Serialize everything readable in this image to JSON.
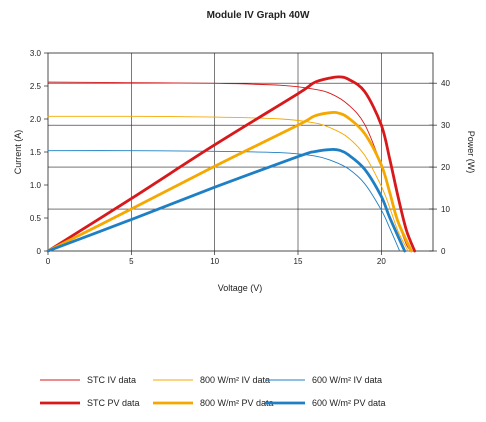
{
  "chart_data": {
    "type": "line",
    "title": "Module IV Graph 40W",
    "xlabel": "Voltage (V)",
    "ylabel_left": "Current (A)",
    "ylabel_right": "Power (W)",
    "xlim": [
      0,
      23.1
    ],
    "ylim_left": [
      0,
      3.0
    ],
    "ylim_right": [
      0,
      47.2
    ],
    "x_ticks": [
      "0",
      "5",
      "10",
      "15",
      "20"
    ],
    "x_tick_values": [
      0,
      5,
      10,
      15,
      20
    ],
    "y_left_ticks": [
      "0",
      "0.5",
      "1.0",
      "1.5",
      "2.0",
      "2.5",
      "3.0"
    ],
    "y_left_tick_values": [
      0,
      0.5,
      1.0,
      1.5,
      2.0,
      2.5,
      3.0
    ],
    "y_right_ticks": [
      "0",
      "10",
      "20",
      "30",
      "40"
    ],
    "y_right_tick_values": [
      0,
      10,
      20,
      30,
      40
    ],
    "grid": true,
    "legend_position": "bottom",
    "series": [
      {
        "name": "STC IV data",
        "axis": "left",
        "color": "#d7191c",
        "weight": "thin",
        "x": [
          0,
          5,
          10,
          14,
          16,
          17,
          18,
          19,
          20,
          20.5,
          21,
          21.5,
          21.8
        ],
        "y": [
          2.56,
          2.55,
          2.54,
          2.51,
          2.45,
          2.38,
          2.22,
          1.92,
          1.3,
          0.9,
          0.45,
          0.1,
          0
        ]
      },
      {
        "name": "800 W/m² IV data",
        "axis": "left",
        "color": "#f5a800",
        "weight": "thin",
        "x": [
          0,
          5,
          10,
          14,
          16,
          17,
          18,
          19,
          20,
          20.5,
          21,
          21.6
        ],
        "y": [
          2.04,
          2.04,
          2.03,
          2.0,
          1.94,
          1.86,
          1.72,
          1.45,
          0.98,
          0.66,
          0.3,
          0
        ]
      },
      {
        "name": "600 W/m² IV data",
        "axis": "left",
        "color": "#1f7fc4",
        "weight": "thin",
        "x": [
          0,
          5,
          10,
          14,
          16,
          17,
          18,
          19,
          20,
          20.5,
          21.1
        ],
        "y": [
          1.52,
          1.52,
          1.51,
          1.49,
          1.44,
          1.37,
          1.25,
          1.02,
          0.62,
          0.35,
          0
        ]
      },
      {
        "name": "STC PV data",
        "axis": "right",
        "color": "#d7191c",
        "weight": "thick",
        "x": [
          0,
          5,
          10,
          15,
          16,
          17,
          17.5,
          18,
          19,
          20,
          20.5,
          21,
          21.5,
          22
        ],
        "y": [
          0,
          12.5,
          25.3,
          37.5,
          40.2,
          41.3,
          41.5,
          41.0,
          38.0,
          30.0,
          22.0,
          13.0,
          5.0,
          0
        ]
      },
      {
        "name": "800 W/m² PV data",
        "axis": "right",
        "color": "#f5a800",
        "weight": "thick",
        "x": [
          0,
          5,
          10,
          15,
          16,
          17,
          17.5,
          18,
          19,
          20,
          20.5,
          21,
          21.8
        ],
        "y": [
          0,
          10.0,
          20.2,
          30.0,
          32.2,
          33.0,
          32.8,
          31.8,
          28.0,
          20.5,
          14.0,
          7.0,
          0
        ]
      },
      {
        "name": "600 W/m² PV data",
        "axis": "right",
        "color": "#1f7fc4",
        "weight": "thick",
        "x": [
          0,
          5,
          10,
          15,
          16,
          17,
          17.5,
          18,
          19,
          20,
          20.5,
          21.4
        ],
        "y": [
          0,
          7.5,
          15.2,
          22.5,
          23.7,
          24.2,
          24.0,
          23.0,
          19.5,
          13.0,
          8.0,
          0
        ]
      }
    ]
  }
}
